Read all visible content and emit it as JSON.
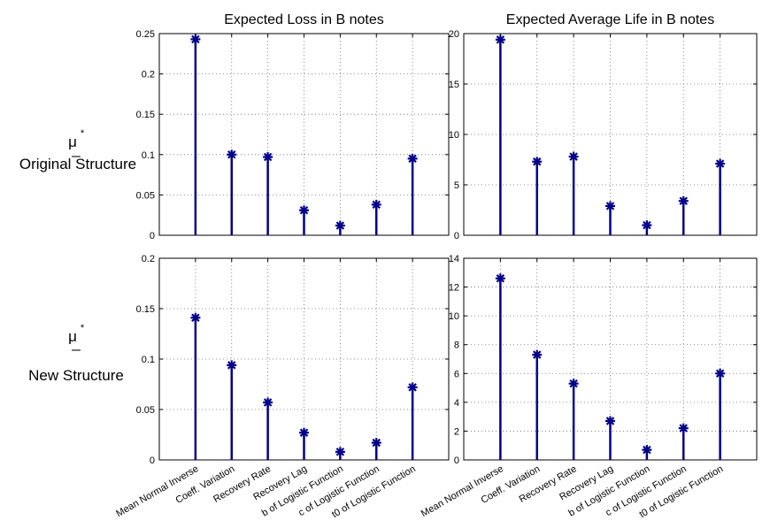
{
  "row_labels": [
    {
      "symbol": "μ",
      "star": "*",
      "dash": "_",
      "text": "Original Structure"
    },
    {
      "symbol": "μ",
      "star": "*",
      "dash": "_",
      "text": "New Structure"
    }
  ],
  "colors": {
    "stem": "#00008b",
    "grid": "#6e6e6e",
    "frame": "#000000"
  },
  "chart_data": [
    {
      "type": "stem",
      "title": "Expected Loss in B notes",
      "categories": [
        "Mean Normal Inverse",
        "Coeff. Variation",
        "Recovery Rate",
        "Recovery Lag",
        "b of Logistic Function",
        "c of Logistic Function",
        "t0 of Logistic Function"
      ],
      "values": [
        0.243,
        0.1,
        0.097,
        0.031,
        0.012,
        0.038,
        0.095
      ],
      "ylim": [
        0,
        0.25
      ],
      "yticks": [
        "0",
        "0.05",
        "0.1",
        "0.15",
        "0.2",
        "0.25"
      ],
      "grid": true,
      "show_category_labels": false
    },
    {
      "type": "stem",
      "title": "Expected Average Life in B notes",
      "categories": [
        "Mean Normal Inverse",
        "Coeff. Variation",
        "Recovery Rate",
        "Recovery Lag",
        "b of Logistic Function",
        "c of Logistic Function",
        "t0 of Logistic Function"
      ],
      "values": [
        19.4,
        7.3,
        7.8,
        2.9,
        1.0,
        3.4,
        7.1
      ],
      "ylim": [
        0,
        20
      ],
      "yticks": [
        "0",
        "5",
        "10",
        "15",
        "20"
      ],
      "grid": true,
      "show_category_labels": false
    },
    {
      "type": "stem",
      "title": "",
      "categories": [
        "Mean Normal Inverse",
        "Coeff. Variation",
        "Recovery Rate",
        "Recovery Lag",
        "b of Logistic Function",
        "c of Logistic Function",
        "t0 of Logistic Function"
      ],
      "values": [
        0.141,
        0.094,
        0.057,
        0.027,
        0.008,
        0.017,
        0.072
      ],
      "ylim": [
        0,
        0.2
      ],
      "yticks": [
        "0",
        "0.05",
        "0.1",
        "0.15",
        "0.2"
      ],
      "grid": true,
      "show_category_labels": true
    },
    {
      "type": "stem",
      "title": "",
      "categories": [
        "Mean Normal Inverse",
        "Coeff. Variation",
        "Recovery Rate",
        "Recovery Lag",
        "b of Logistic Function",
        "c of Logistic Function",
        "t0 of Logistic Function"
      ],
      "values": [
        12.6,
        7.3,
        5.3,
        2.7,
        0.7,
        2.2,
        6.0
      ],
      "ylim": [
        0,
        14
      ],
      "yticks": [
        "0",
        "2",
        "4",
        "6",
        "8",
        "10",
        "12",
        "14"
      ],
      "grid": true,
      "show_category_labels": true
    }
  ]
}
